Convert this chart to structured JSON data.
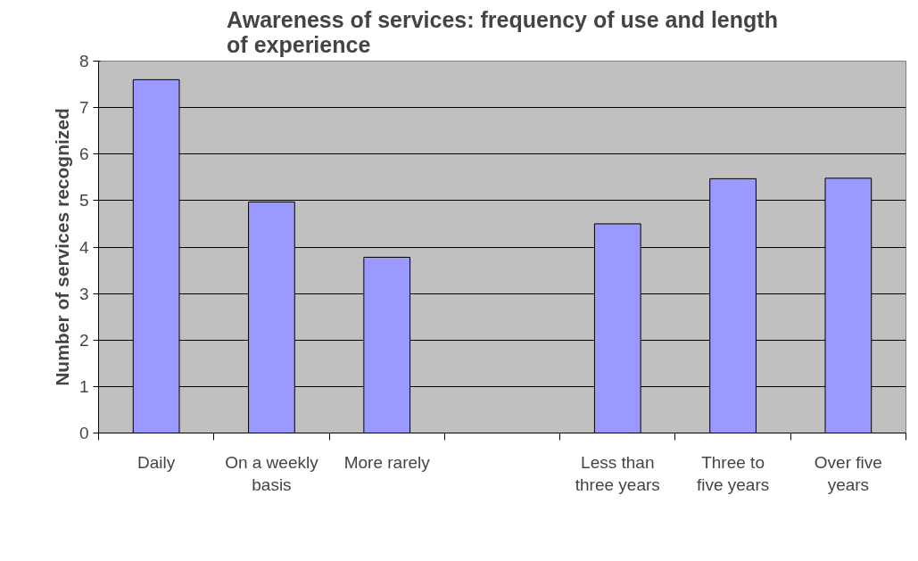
{
  "chart_data": {
    "type": "bar",
    "title": "Awareness of services: frequency of use and length of experience",
    "ylabel": "Number of services recognized",
    "categories": [
      "Daily",
      "On a weekly basis",
      "More rarely",
      null,
      "Less than three years",
      "Three to five years",
      "Over five years"
    ],
    "values": [
      7.6,
      4.97,
      3.78,
      null,
      4.5,
      5.47,
      5.48
    ],
    "color": "#9999ff",
    "ylim": [
      0,
      8
    ],
    "yticks": [
      0,
      1,
      2,
      3,
      4,
      5,
      6,
      7,
      8
    ],
    "grid": "y"
  }
}
